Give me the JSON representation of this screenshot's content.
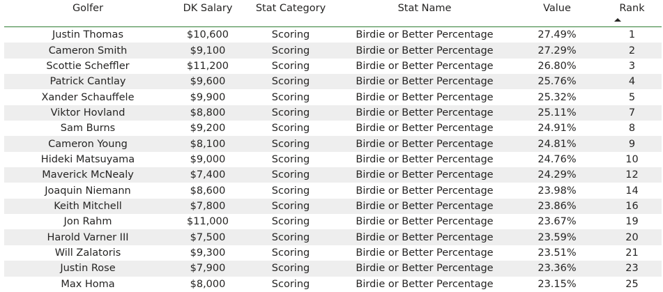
{
  "table": {
    "headers": {
      "golfer": "Golfer",
      "salary": "DK Salary",
      "category": "Stat Category",
      "stat_name": "Stat Name",
      "value": "Value",
      "rank": "Rank"
    },
    "sort_icon": "sort-ascending-icon",
    "rows": [
      {
        "golfer": "Justin Thomas",
        "salary": "$10,600",
        "category": "Scoring",
        "stat_name": "Birdie or Better Percentage",
        "value": "27.49%",
        "rank": "1"
      },
      {
        "golfer": "Cameron Smith",
        "salary": "$9,100",
        "category": "Scoring",
        "stat_name": "Birdie or Better Percentage",
        "value": "27.29%",
        "rank": "2"
      },
      {
        "golfer": "Scottie Scheffler",
        "salary": "$11,200",
        "category": "Scoring",
        "stat_name": "Birdie or Better Percentage",
        "value": "26.80%",
        "rank": "3"
      },
      {
        "golfer": "Patrick Cantlay",
        "salary": "$9,600",
        "category": "Scoring",
        "stat_name": "Birdie or Better Percentage",
        "value": "25.76%",
        "rank": "4"
      },
      {
        "golfer": "Xander Schauffele",
        "salary": "$9,900",
        "category": "Scoring",
        "stat_name": "Birdie or Better Percentage",
        "value": "25.32%",
        "rank": "5"
      },
      {
        "golfer": "Viktor Hovland",
        "salary": "$8,800",
        "category": "Scoring",
        "stat_name": "Birdie or Better Percentage",
        "value": "25.11%",
        "rank": "7"
      },
      {
        "golfer": "Sam Burns",
        "salary": "$9,200",
        "category": "Scoring",
        "stat_name": "Birdie or Better Percentage",
        "value": "24.91%",
        "rank": "8"
      },
      {
        "golfer": "Cameron Young",
        "salary": "$8,100",
        "category": "Scoring",
        "stat_name": "Birdie or Better Percentage",
        "value": "24.81%",
        "rank": "9"
      },
      {
        "golfer": "Hideki Matsuyama",
        "salary": "$9,000",
        "category": "Scoring",
        "stat_name": "Birdie or Better Percentage",
        "value": "24.76%",
        "rank": "10"
      },
      {
        "golfer": "Maverick McNealy",
        "salary": "$7,400",
        "category": "Scoring",
        "stat_name": "Birdie or Better Percentage",
        "value": "24.29%",
        "rank": "12"
      },
      {
        "golfer": "Joaquin Niemann",
        "salary": "$8,600",
        "category": "Scoring",
        "stat_name": "Birdie or Better Percentage",
        "value": "23.98%",
        "rank": "14"
      },
      {
        "golfer": "Keith Mitchell",
        "salary": "$7,800",
        "category": "Scoring",
        "stat_name": "Birdie or Better Percentage",
        "value": "23.86%",
        "rank": "16"
      },
      {
        "golfer": "Jon Rahm",
        "salary": "$11,000",
        "category": "Scoring",
        "stat_name": "Birdie or Better Percentage",
        "value": "23.67%",
        "rank": "19"
      },
      {
        "golfer": "Harold Varner III",
        "salary": "$7,500",
        "category": "Scoring",
        "stat_name": "Birdie or Better Percentage",
        "value": "23.59%",
        "rank": "20"
      },
      {
        "golfer": "Will Zalatoris",
        "salary": "$9,300",
        "category": "Scoring",
        "stat_name": "Birdie or Better Percentage",
        "value": "23.51%",
        "rank": "21"
      },
      {
        "golfer": "Justin Rose",
        "salary": "$7,900",
        "category": "Scoring",
        "stat_name": "Birdie or Better Percentage",
        "value": "23.36%",
        "rank": "23"
      },
      {
        "golfer": "Max Homa",
        "salary": "$8,000",
        "category": "Scoring",
        "stat_name": "Birdie or Better Percentage",
        "value": "23.15%",
        "rank": "25"
      }
    ]
  }
}
